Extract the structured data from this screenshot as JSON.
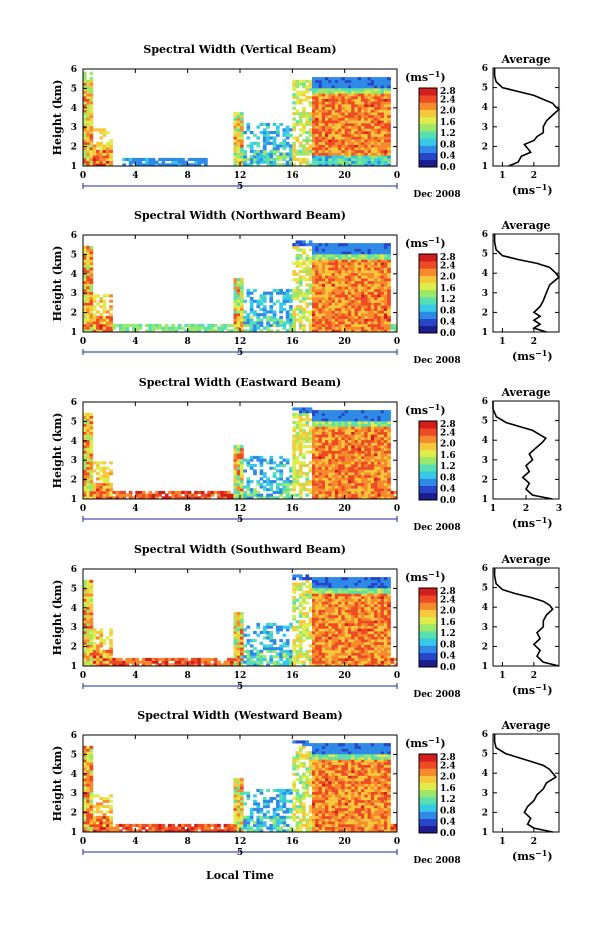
{
  "figure": {
    "xlabel": "Local Time",
    "colormap": [
      "#1c1c8c",
      "#2846c8",
      "#2e8ae6",
      "#38c8e8",
      "#58e0b0",
      "#9ce86a",
      "#e0ec4c",
      "#f8c83c",
      "#f88a2e",
      "#ee4a26",
      "#d41e1e"
    ],
    "missing_color": "#ffffff"
  },
  "chart_data": [
    {
      "type": "heatmap",
      "title": "Spectral Width (Vertical Beam)",
      "ylabel": "Height (km)",
      "x_ticks": [
        "0",
        "4",
        "8",
        "12",
        "16",
        "20",
        "0"
      ],
      "x_range": [
        0,
        24
      ],
      "date_day": "5",
      "date_label": "Dec 2008",
      "ylim": [
        1,
        6
      ],
      "y_ticks": [
        "1",
        "2",
        "3",
        "4",
        "5",
        "6"
      ],
      "colorbar": {
        "unit": "(ms",
        "unit_sup": "−1",
        "unit_close": ")",
        "ticks": [
          "0.0",
          "0.4",
          "0.8",
          "1.2",
          "1.6",
          "2.0",
          "2.4",
          "2.8"
        ],
        "range": [
          0,
          2.8
        ]
      },
      "average": {
        "title": "Average",
        "xlabel": "(ms",
        "xlabel_sup": "−1",
        "xlabel_close": ")",
        "x_ticks": [
          "1",
          "2"
        ],
        "xlim": [
          0.7,
          2.8
        ],
        "profile": [
          [
            1.0,
            1.2
          ],
          [
            1.2,
            1.5
          ],
          [
            1.5,
            1.6
          ],
          [
            1.7,
            1.9
          ],
          [
            1.9,
            1.8
          ],
          [
            2.1,
            1.7
          ],
          [
            2.3,
            2.0
          ],
          [
            2.5,
            2.1
          ],
          [
            2.7,
            2.3
          ],
          [
            3.0,
            2.3
          ],
          [
            3.3,
            2.4
          ],
          [
            3.6,
            2.6
          ],
          [
            3.9,
            2.8
          ],
          [
            4.0,
            2.7
          ],
          [
            4.2,
            2.6
          ],
          [
            4.4,
            2.3
          ],
          [
            4.6,
            2.0
          ],
          [
            4.8,
            1.5
          ],
          [
            5.0,
            1.0
          ],
          [
            5.3,
            0.8
          ],
          [
            5.6,
            0.75
          ],
          [
            6.0,
            0.75
          ]
        ]
      }
    },
    {
      "type": "heatmap",
      "title": "Spectral Width (Northward Beam)",
      "ylabel": "Height (km)",
      "x_ticks": [
        "0",
        "4",
        "8",
        "12",
        "16",
        "20",
        "0"
      ],
      "x_range": [
        0,
        24
      ],
      "date_day": "5",
      "date_label": "Dec 2008",
      "ylim": [
        1,
        6
      ],
      "y_ticks": [
        "1",
        "2",
        "3",
        "4",
        "5",
        "6"
      ],
      "colorbar": {
        "unit": "(ms",
        "unit_sup": "−1",
        "unit_close": ")",
        "ticks": [
          "0.0",
          "0.4",
          "0.8",
          "1.2",
          "1.6",
          "2.0",
          "2.4",
          "2.8"
        ],
        "range": [
          0,
          2.8
        ]
      },
      "average": {
        "title": "Average",
        "xlabel": "(ms",
        "xlabel_sup": "−1",
        "xlabel_close": ")",
        "x_ticks": [
          "1",
          "2"
        ],
        "xlim": [
          0.7,
          2.8
        ],
        "profile": [
          [
            1.0,
            2.4
          ],
          [
            1.2,
            2.0
          ],
          [
            1.4,
            2.2
          ],
          [
            1.6,
            2.0
          ],
          [
            1.8,
            2.2
          ],
          [
            2.0,
            2.0
          ],
          [
            2.3,
            2.2
          ],
          [
            2.6,
            2.3
          ],
          [
            3.0,
            2.4
          ],
          [
            3.4,
            2.5
          ],
          [
            3.8,
            2.8
          ],
          [
            4.0,
            2.7
          ],
          [
            4.3,
            2.5
          ],
          [
            4.5,
            2.1
          ],
          [
            4.7,
            1.5
          ],
          [
            4.9,
            1.0
          ],
          [
            5.2,
            0.8
          ],
          [
            5.6,
            0.75
          ],
          [
            6.0,
            0.75
          ]
        ]
      }
    },
    {
      "type": "heatmap",
      "title": "Spectral Width (Eastward Beam)",
      "ylabel": "Height (km)",
      "x_ticks": [
        "0",
        "4",
        "8",
        "12",
        "16",
        "20",
        "0"
      ],
      "x_range": [
        0,
        24
      ],
      "date_day": "5",
      "date_label": "Dec 2008",
      "ylim": [
        1,
        6
      ],
      "y_ticks": [
        "1",
        "2",
        "3",
        "4",
        "5",
        "6"
      ],
      "colorbar": {
        "unit": "(ms",
        "unit_sup": "−1",
        "unit_close": ")",
        "ticks": [
          "0.0",
          "0.4",
          "0.8",
          "1.2",
          "1.6",
          "2.0",
          "2.4",
          "2.8"
        ],
        "range": [
          0,
          2.8
        ]
      },
      "average": {
        "title": "Average",
        "xlabel": "(ms",
        "xlabel_sup": "−1",
        "xlabel_close": ")",
        "x_ticks": [
          "1",
          "2",
          "3"
        ],
        "xlim": [
          1,
          3
        ],
        "profile": [
          [
            1.0,
            2.8
          ],
          [
            1.2,
            2.2
          ],
          [
            1.5,
            2.0
          ],
          [
            1.8,
            2.1
          ],
          [
            2.1,
            1.9
          ],
          [
            2.4,
            2.1
          ],
          [
            2.7,
            2.0
          ],
          [
            3.0,
            2.2
          ],
          [
            3.3,
            2.1
          ],
          [
            3.6,
            2.3
          ],
          [
            3.9,
            2.5
          ],
          [
            4.1,
            2.6
          ],
          [
            4.3,
            2.4
          ],
          [
            4.5,
            2.2
          ],
          [
            4.7,
            1.8
          ],
          [
            4.9,
            1.4
          ],
          [
            5.2,
            1.1
          ],
          [
            5.6,
            1.0
          ],
          [
            6.0,
            1.0
          ]
        ]
      }
    },
    {
      "type": "heatmap",
      "title": "Spectral Width (Southward Beam)",
      "ylabel": "Height (km)",
      "x_ticks": [
        "0",
        "4",
        "8",
        "12",
        "16",
        "20",
        "0"
      ],
      "x_range": [
        0,
        24
      ],
      "date_day": "5",
      "date_label": "Dec 2008",
      "ylim": [
        1,
        6
      ],
      "y_ticks": [
        "1",
        "2",
        "3",
        "4",
        "5",
        "6"
      ],
      "colorbar": {
        "unit": "(ms",
        "unit_sup": "−1",
        "unit_close": ")",
        "ticks": [
          "0.0",
          "0.4",
          "0.8",
          "1.2",
          "1.6",
          "2.0",
          "2.4",
          "2.8"
        ],
        "range": [
          0,
          2.8
        ]
      },
      "average": {
        "title": "Average",
        "xlabel": "(ms",
        "xlabel_sup": "−1",
        "xlabel_close": ")",
        "x_ticks": [
          "1",
          "2"
        ],
        "xlim": [
          0.7,
          2.8
        ],
        "profile": [
          [
            1.0,
            2.8
          ],
          [
            1.2,
            2.3
          ],
          [
            1.5,
            2.1
          ],
          [
            1.8,
            2.2
          ],
          [
            2.1,
            2.0
          ],
          [
            2.4,
            2.2
          ],
          [
            2.7,
            2.1
          ],
          [
            3.0,
            2.3
          ],
          [
            3.3,
            2.3
          ],
          [
            3.6,
            2.4
          ],
          [
            3.9,
            2.6
          ],
          [
            4.1,
            2.5
          ],
          [
            4.3,
            2.3
          ],
          [
            4.5,
            1.9
          ],
          [
            4.7,
            1.4
          ],
          [
            4.9,
            1.0
          ],
          [
            5.2,
            0.8
          ],
          [
            5.6,
            0.75
          ],
          [
            6.0,
            0.75
          ]
        ]
      }
    },
    {
      "type": "heatmap",
      "title": "Spectral Width (Westward Beam)",
      "ylabel": "Height (km)",
      "x_ticks": [
        "0",
        "4",
        "8",
        "12",
        "16",
        "20",
        "0"
      ],
      "x_range": [
        0,
        24
      ],
      "date_day": "5",
      "date_label": "Dec 2008",
      "ylim": [
        1,
        6
      ],
      "y_ticks": [
        "1",
        "2",
        "3",
        "4",
        "5",
        "6"
      ],
      "colorbar": {
        "unit": "(ms",
        "unit_sup": "−1",
        "unit_close": ")",
        "ticks": [
          "0.0",
          "0.4",
          "0.8",
          "1.2",
          "1.6",
          "2.0",
          "2.4",
          "2.8"
        ],
        "range": [
          0,
          2.8
        ]
      },
      "average": {
        "title": "Average",
        "xlabel": "(ms",
        "xlabel_sup": "−1",
        "xlabel_close": ")",
        "x_ticks": [
          "1",
          "2"
        ],
        "xlim": [
          0.7,
          2.8
        ],
        "profile": [
          [
            1.0,
            2.6
          ],
          [
            1.2,
            2.0
          ],
          [
            1.4,
            1.8
          ],
          [
            1.7,
            1.9
          ],
          [
            2.0,
            1.7
          ],
          [
            2.3,
            1.8
          ],
          [
            2.6,
            2.0
          ],
          [
            2.9,
            2.1
          ],
          [
            3.2,
            2.3
          ],
          [
            3.5,
            2.4
          ],
          [
            3.8,
            2.7
          ],
          [
            4.0,
            2.6
          ],
          [
            4.2,
            2.5
          ],
          [
            4.4,
            2.3
          ],
          [
            4.6,
            1.9
          ],
          [
            4.8,
            1.5
          ],
          [
            5.0,
            1.1
          ],
          [
            5.3,
            0.8
          ],
          [
            5.6,
            0.75
          ],
          [
            6.0,
            0.75
          ]
        ]
      }
    }
  ]
}
